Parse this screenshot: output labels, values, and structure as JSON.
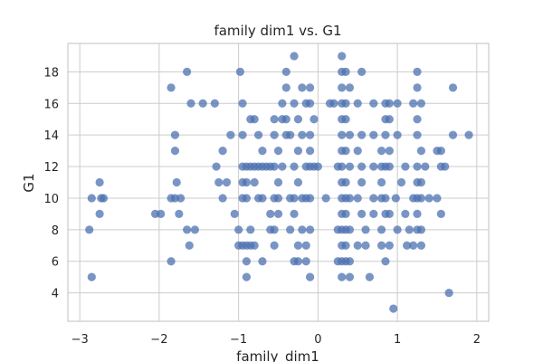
{
  "chart_data": {
    "type": "scatter",
    "title": "family dim1 vs. G1",
    "xlabel": "family_dim1",
    "ylabel": "G1",
    "xlim": [
      -3.15,
      2.15
    ],
    "ylim": [
      2.2,
      19.8
    ],
    "xticks": [
      -3,
      -2,
      -1,
      0,
      1,
      2
    ],
    "yticks": [
      4,
      6,
      8,
      10,
      12,
      14,
      16,
      18
    ],
    "grid": true,
    "legend": "none",
    "point_color": "#4c72b0",
    "points": [
      [
        -2.85,
        5
      ],
      [
        -2.88,
        8
      ],
      [
        -2.85,
        10
      ],
      [
        -2.75,
        9
      ],
      [
        -2.75,
        11
      ],
      [
        -2.73,
        10
      ],
      [
        -2.7,
        10
      ],
      [
        -2.05,
        9
      ],
      [
        -1.98,
        9
      ],
      [
        -1.85,
        6
      ],
      [
        -1.85,
        10
      ],
      [
        -1.8,
        10
      ],
      [
        -1.75,
        9
      ],
      [
        -1.73,
        10
      ],
      [
        -1.85,
        17
      ],
      [
        -1.8,
        14
      ],
      [
        -1.8,
        13
      ],
      [
        -1.78,
        11
      ],
      [
        -1.65,
        18
      ],
      [
        -1.6,
        16
      ],
      [
        -1.65,
        8
      ],
      [
        -1.62,
        7
      ],
      [
        -1.55,
        8
      ],
      [
        -1.45,
        16
      ],
      [
        -1.3,
        16
      ],
      [
        -1.28,
        12
      ],
      [
        -1.25,
        11
      ],
      [
        -1.2,
        10
      ],
      [
        -1.2,
        13
      ],
      [
        -1.15,
        11
      ],
      [
        -1.1,
        14
      ],
      [
        -1.05,
        9
      ],
      [
        -1.0,
        8
      ],
      [
        -1.0,
        7
      ],
      [
        -0.98,
        18
      ],
      [
        -0.95,
        16
      ],
      [
        -0.95,
        14
      ],
      [
        -0.95,
        12
      ],
      [
        -0.95,
        11
      ],
      [
        -0.95,
        10
      ],
      [
        -0.95,
        7
      ],
      [
        -0.9,
        12
      ],
      [
        -0.9,
        11
      ],
      [
        -0.9,
        10
      ],
      [
        -0.9,
        7
      ],
      [
        -0.9,
        6
      ],
      [
        -0.9,
        5
      ],
      [
        -0.85,
        15
      ],
      [
        -0.85,
        12
      ],
      [
        -0.85,
        8
      ],
      [
        -0.85,
        7
      ],
      [
        -0.8,
        15
      ],
      [
        -0.8,
        12
      ],
      [
        -0.8,
        11
      ],
      [
        -0.8,
        7
      ],
      [
        -0.75,
        14
      ],
      [
        -0.75,
        12
      ],
      [
        -0.75,
        10
      ],
      [
        -0.7,
        12
      ],
      [
        -0.7,
        13
      ],
      [
        -0.7,
        10
      ],
      [
        -0.7,
        6
      ],
      [
        -0.65,
        12
      ],
      [
        -0.6,
        12
      ],
      [
        -0.6,
        9
      ],
      [
        -0.6,
        8
      ],
      [
        -0.55,
        15
      ],
      [
        -0.55,
        14
      ],
      [
        -0.55,
        12
      ],
      [
        -0.55,
        10
      ],
      [
        -0.55,
        8
      ],
      [
        -0.55,
        7
      ],
      [
        -0.5,
        13
      ],
      [
        -0.5,
        11
      ],
      [
        -0.5,
        10
      ],
      [
        -0.5,
        9
      ],
      [
        -0.45,
        12
      ],
      [
        -0.45,
        15
      ],
      [
        -0.45,
        16
      ],
      [
        -0.4,
        18
      ],
      [
        -0.4,
        17
      ],
      [
        -0.4,
        15
      ],
      [
        -0.4,
        14
      ],
      [
        -0.35,
        14
      ],
      [
        -0.35,
        10
      ],
      [
        -0.35,
        8
      ],
      [
        -0.3,
        19
      ],
      [
        -0.3,
        16
      ],
      [
        -0.3,
        12
      ],
      [
        -0.3,
        10
      ],
      [
        -0.3,
        9
      ],
      [
        -0.3,
        6
      ],
      [
        -0.25,
        15
      ],
      [
        -0.25,
        13
      ],
      [
        -0.25,
        11
      ],
      [
        -0.25,
        7
      ],
      [
        -0.25,
        6
      ],
      [
        -0.2,
        17
      ],
      [
        -0.2,
        14
      ],
      [
        -0.2,
        10
      ],
      [
        -0.2,
        8
      ],
      [
        -0.15,
        16
      ],
      [
        -0.15,
        12
      ],
      [
        -0.15,
        10
      ],
      [
        -0.15,
        7
      ],
      [
        -0.15,
        6
      ],
      [
        -0.1,
        17
      ],
      [
        -0.1,
        16
      ],
      [
        -0.1,
        14
      ],
      [
        -0.1,
        13
      ],
      [
        -0.1,
        12
      ],
      [
        -0.1,
        10
      ],
      [
        -0.1,
        8
      ],
      [
        -0.1,
        5
      ],
      [
        -0.05,
        15
      ],
      [
        -0.05,
        12
      ],
      [
        0.0,
        12
      ],
      [
        0.1,
        10
      ],
      [
        0.15,
        16
      ],
      [
        0.2,
        16
      ],
      [
        0.25,
        12
      ],
      [
        0.25,
        8
      ],
      [
        0.25,
        6
      ],
      [
        0.3,
        19
      ],
      [
        0.3,
        18
      ],
      [
        0.3,
        17
      ],
      [
        0.3,
        16
      ],
      [
        0.3,
        15
      ],
      [
        0.3,
        14
      ],
      [
        0.3,
        13
      ],
      [
        0.3,
        12
      ],
      [
        0.3,
        11
      ],
      [
        0.3,
        10
      ],
      [
        0.3,
        9
      ],
      [
        0.3,
        8
      ],
      [
        0.3,
        7
      ],
      [
        0.3,
        6
      ],
      [
        0.3,
        5
      ],
      [
        0.35,
        18
      ],
      [
        0.35,
        16
      ],
      [
        0.35,
        15
      ],
      [
        0.35,
        13
      ],
      [
        0.35,
        11
      ],
      [
        0.35,
        10
      ],
      [
        0.35,
        9
      ],
      [
        0.35,
        8
      ],
      [
        0.35,
        7
      ],
      [
        0.35,
        6
      ],
      [
        0.4,
        17
      ],
      [
        0.4,
        14
      ],
      [
        0.4,
        12
      ],
      [
        0.4,
        10
      ],
      [
        0.4,
        8
      ],
      [
        0.4,
        6
      ],
      [
        0.4,
        5
      ],
      [
        0.5,
        16
      ],
      [
        0.5,
        13
      ],
      [
        0.5,
        10
      ],
      [
        0.5,
        7
      ],
      [
        0.55,
        18
      ],
      [
        0.55,
        14
      ],
      [
        0.55,
        12
      ],
      [
        0.55,
        11
      ],
      [
        0.55,
        9
      ],
      [
        0.6,
        8
      ],
      [
        0.6,
        7
      ],
      [
        0.7,
        16
      ],
      [
        0.7,
        14
      ],
      [
        0.7,
        12
      ],
      [
        0.7,
        10
      ],
      [
        0.7,
        9
      ],
      [
        0.65,
        5
      ],
      [
        0.8,
        13
      ],
      [
        0.8,
        12
      ],
      [
        0.8,
        11
      ],
      [
        0.8,
        10
      ],
      [
        0.8,
        8
      ],
      [
        0.8,
        7
      ],
      [
        0.85,
        16
      ],
      [
        0.85,
        15
      ],
      [
        0.85,
        14
      ],
      [
        0.85,
        12
      ],
      [
        0.85,
        10
      ],
      [
        0.85,
        9
      ],
      [
        0.85,
        6
      ],
      [
        0.9,
        16
      ],
      [
        0.9,
        15
      ],
      [
        0.9,
        13
      ],
      [
        0.9,
        12
      ],
      [
        0.9,
        9
      ],
      [
        0.9,
        7
      ],
      [
        0.95,
        3
      ],
      [
        0.98,
        10
      ],
      [
        1.0,
        16
      ],
      [
        1.0,
        14
      ],
      [
        1.0,
        8
      ],
      [
        1.05,
        11
      ],
      [
        1.1,
        12
      ],
      [
        1.1,
        9
      ],
      [
        1.12,
        7
      ],
      [
        1.15,
        8
      ],
      [
        1.2,
        16
      ],
      [
        1.2,
        10
      ],
      [
        1.2,
        7
      ],
      [
        1.25,
        18
      ],
      [
        1.25,
        17
      ],
      [
        1.25,
        15
      ],
      [
        1.25,
        14
      ],
      [
        1.25,
        12
      ],
      [
        1.25,
        11
      ],
      [
        1.25,
        10
      ],
      [
        1.25,
        9
      ],
      [
        1.25,
        8
      ],
      [
        1.3,
        16
      ],
      [
        1.3,
        13
      ],
      [
        1.3,
        11
      ],
      [
        1.3,
        10
      ],
      [
        1.3,
        8
      ],
      [
        1.3,
        7
      ],
      [
        1.35,
        12
      ],
      [
        1.4,
        10
      ],
      [
        1.5,
        13
      ],
      [
        1.5,
        10
      ],
      [
        1.55,
        13
      ],
      [
        1.55,
        12
      ],
      [
        1.55,
        9
      ],
      [
        1.6,
        12
      ],
      [
        1.65,
        4
      ],
      [
        1.7,
        17
      ],
      [
        1.7,
        14
      ],
      [
        1.9,
        14
      ]
    ]
  }
}
